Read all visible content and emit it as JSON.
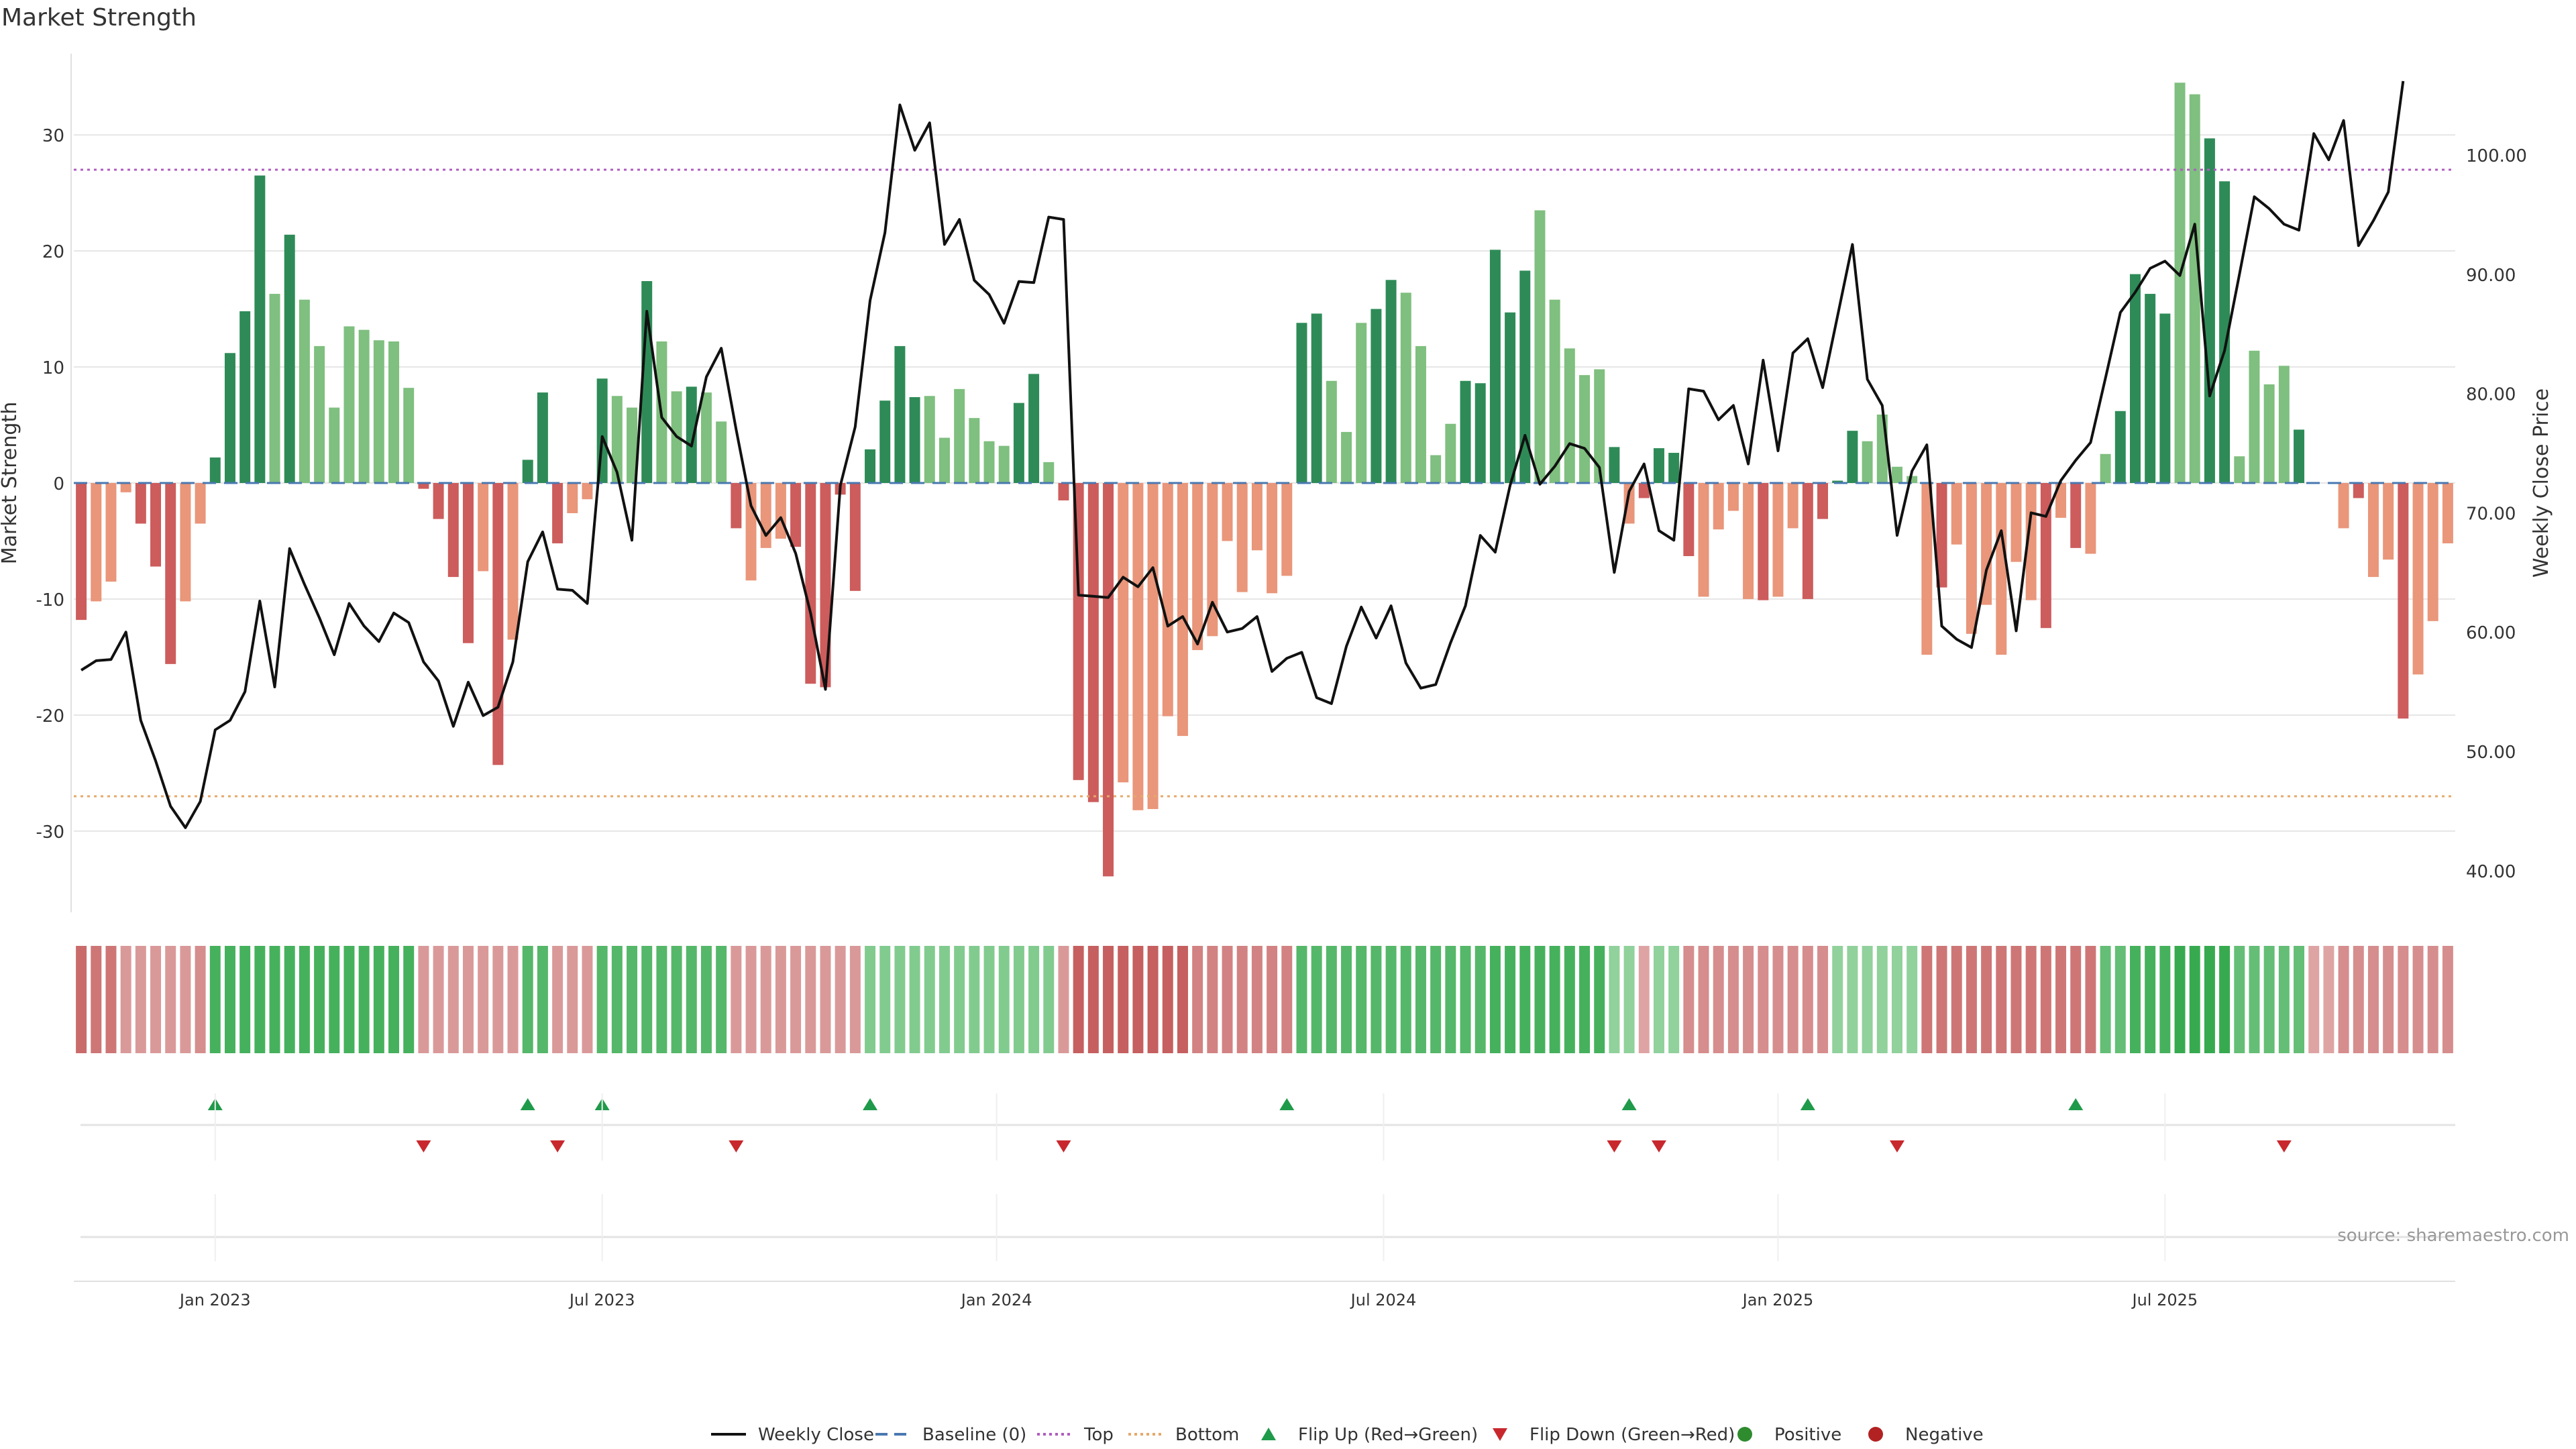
{
  "title": "Market Strength",
  "source": "source: sharemaestro.com",
  "colors": {
    "green_dark": "#2e8b57",
    "green_light": "#7fbf7f",
    "red_dark": "#cd5c5c",
    "red_light": "#e9967a",
    "line": "#111111",
    "top_line": "#b05cc0",
    "bottom_line": "#e6a86a",
    "baseline": "#4a78b0",
    "flip_up": "#1f9a4a",
    "flip_down": "#c8282d",
    "positive": "#2e8b2e",
    "negative": "#b22222",
    "grid": "#e6e6e6"
  },
  "chart_data": {
    "type": "bar",
    "title": "Market Strength",
    "ylabel": "Market Strength",
    "y2label": "Weekly Close Price",
    "ylim": [
      -37,
      37
    ],
    "y2lim": [
      36.5,
      108.5
    ],
    "yticks": [
      -30,
      -20,
      -10,
      0,
      10,
      20,
      30
    ],
    "y2ticks": [
      "40.00",
      "50.00",
      "60.00",
      "70.00",
      "80.00",
      "90.00",
      "100.00"
    ],
    "x_ticks": [
      {
        "label": "Jan 2023",
        "week": 9
      },
      {
        "label": "Jul 2023",
        "week": 35
      },
      {
        "label": "Jan 2024",
        "week": 61.5
      },
      {
        "label": "Jul 2024",
        "week": 87.5
      },
      {
        "label": "Jan 2025",
        "week": 114
      },
      {
        "label": "Jul 2025",
        "week": 140
      }
    ],
    "top_level": 27,
    "bottom_level": -27,
    "baseline": 0,
    "strength": [
      -11.8,
      -10.2,
      -8.5,
      -0.8,
      -3.5,
      -7.2,
      -15.6,
      -10.2,
      -3.5,
      2.2,
      11.2,
      14.8,
      26.5,
      16.3,
      21.4,
      15.8,
      11.8,
      6.5,
      13.5,
      13.2,
      12.3,
      12.2,
      8.2,
      -0.5,
      -3.1,
      -8.1,
      -13.8,
      -7.6,
      -24.3,
      -13.5,
      2.0,
      7.8,
      -5.2,
      -2.6,
      -1.4,
      9.0,
      7.5,
      6.5,
      17.4,
      12.2,
      7.9,
      8.3,
      7.8,
      5.3,
      -3.9,
      -8.4,
      -5.6,
      -4.8,
      -5.5,
      -17.3,
      -17.6,
      -1.0,
      -9.3,
      2.9,
      7.1,
      11.8,
      7.4,
      7.5,
      3.9,
      8.1,
      5.6,
      3.6,
      3.2,
      6.9,
      9.4,
      1.8,
      -1.5,
      -25.6,
      -27.5,
      -33.9,
      -25.8,
      -28.2,
      -28.1,
      -20.1,
      -21.8,
      -14.4,
      -13.2,
      -5.0,
      -9.4,
      -5.8,
      -9.5,
      -8.0,
      13.8,
      14.6,
      8.8,
      4.4,
      13.8,
      15.0,
      17.5,
      16.4,
      11.8,
      2.4,
      5.1,
      8.8,
      8.6,
      20.1,
      14.7,
      18.3,
      23.5,
      15.8,
      11.6,
      9.3,
      9.8,
      3.1,
      -3.5,
      -1.3,
      3.0,
      2.6,
      -6.3,
      -9.8,
      -4.0,
      -2.4,
      -10.0,
      -10.1,
      -9.8,
      -3.9,
      -10.0,
      -3.1,
      0.2,
      4.5,
      3.6,
      5.9,
      1.4,
      0.6,
      -14.8,
      -9.0,
      -5.3,
      -13.0,
      -10.5,
      -14.8,
      -6.8,
      -10.1,
      -12.5,
      -3.0,
      -5.6,
      -6.1,
      2.5,
      6.2,
      18.0,
      16.3,
      14.6,
      34.5,
      33.5,
      29.7,
      26.0,
      2.3,
      11.4,
      8.5,
      10.1,
      4.6,
      0,
      0,
      -3.9,
      -1.3,
      -8.1,
      -6.6,
      -20.3,
      -16.5,
      -11.9,
      -5.2
    ],
    "strength_light_indices": [
      1,
      2,
      3,
      7,
      8,
      13,
      15,
      16,
      17,
      18,
      19,
      20,
      21,
      22,
      27,
      29,
      33,
      34,
      36,
      37,
      39,
      40,
      42,
      43,
      45,
      46,
      47,
      57,
      58,
      59,
      60,
      61,
      62,
      65,
      70,
      71,
      72,
      73,
      74,
      75,
      76,
      77,
      78,
      79,
      80,
      81,
      84,
      85,
      86,
      89,
      90,
      91,
      92,
      98,
      99,
      100,
      101,
      102,
      104,
      109,
      110,
      111,
      112,
      114,
      115,
      120,
      121,
      122,
      123,
      124,
      126,
      127,
      128,
      129,
      130,
      131,
      133,
      135,
      136,
      141,
      142,
      145,
      146,
      147,
      148,
      151,
      152,
      154,
      155,
      157,
      158,
      159,
      160,
      161,
      162,
      163,
      164
    ],
    "weekly_close": [
      56.8,
      57.6,
      57.7,
      60.0,
      52.6,
      49.2,
      45.4,
      43.6,
      45.8,
      51.8,
      52.6,
      55.0,
      62.6,
      55.4,
      67.0,
      64.0,
      61.2,
      58.1,
      62.4,
      60.5,
      59.2,
      61.6,
      60.8,
      57.5,
      55.9,
      52.1,
      55.8,
      53.0,
      53.7,
      57.5,
      65.9,
      68.4,
      63.6,
      63.5,
      62.4,
      76.4,
      73.4,
      67.7,
      86.9,
      78.0,
      76.4,
      75.6,
      81.4,
      83.8,
      77.0,
      70.6,
      68.1,
      69.6,
      66.6,
      61.6,
      55.2,
      72.3,
      77.2,
      87.8,
      93.5,
      104.2,
      100.4,
      102.7,
      92.5,
      94.6,
      89.5,
      88.3,
      85.9,
      89.4,
      89.3,
      94.8,
      94.6,
      63.1,
      63.0,
      62.9,
      64.6,
      63.8,
      65.4,
      60.5,
      61.3,
      59.0,
      62.5,
      60.0,
      60.3,
      61.3,
      56.7,
      57.8,
      58.3,
      54.5,
      54.0,
      58.8,
      62.1,
      59.5,
      62.2,
      57.4,
      55.3,
      55.6,
      59.1,
      62.2,
      68.1,
      66.7,
      72.3,
      76.5,
      72.4,
      73.9,
      75.8,
      75.4,
      73.8,
      65.0,
      71.8,
      74.1,
      68.5,
      67.7,
      80.4,
      80.2,
      77.8,
      79.0,
      74.1,
      82.8,
      75.2,
      83.4,
      84.6,
      80.5,
      86.5,
      92.5,
      81.2,
      79.0,
      68.1,
      73.5,
      75.7,
      60.5,
      59.4,
      58.7,
      65.2,
      68.5,
      60.1,
      70.0,
      69.7,
      72.7,
      74.4,
      75.9,
      81.3,
      86.8,
      88.5,
      90.5,
      91.1,
      89.9,
      94.2,
      79.8,
      83.6,
      90.0,
      96.5,
      95.5,
      94.2,
      93.7,
      101.8,
      99.6,
      102.9,
      92.4,
      94.5,
      96.9,
      106.2
    ],
    "heat_strip": [
      -0.9,
      -0.8,
      -0.8,
      -0.5,
      -0.5,
      -0.5,
      -0.5,
      -0.5,
      -0.6,
      0.9,
      0.9,
      0.9,
      0.9,
      0.9,
      0.9,
      0.9,
      0.9,
      0.9,
      0.9,
      0.9,
      0.9,
      0.9,
      0.9,
      -0.5,
      -0.5,
      -0.5,
      -0.5,
      -0.5,
      -0.5,
      -0.5,
      0.8,
      0.8,
      -0.5,
      -0.5,
      -0.5,
      0.8,
      0.8,
      0.8,
      0.8,
      0.8,
      0.8,
      0.8,
      0.8,
      0.8,
      -0.5,
      -0.5,
      -0.5,
      -0.5,
      -0.5,
      -0.5,
      -0.5,
      -0.5,
      -0.5,
      0.5,
      0.5,
      0.5,
      0.5,
      0.5,
      0.5,
      0.5,
      0.5,
      0.5,
      0.5,
      0.5,
      0.5,
      0.5,
      -0.5,
      -1.0,
      -1.0,
      -1.0,
      -1.0,
      -1.0,
      -1.0,
      -1.0,
      -1.0,
      -0.7,
      -0.7,
      -0.7,
      -0.7,
      -0.7,
      -0.7,
      -0.7,
      0.8,
      0.8,
      0.8,
      0.8,
      0.8,
      0.8,
      0.8,
      0.8,
      0.8,
      0.8,
      0.8,
      0.8,
      0.8,
      0.9,
      0.9,
      0.9,
      0.9,
      0.9,
      0.9,
      0.9,
      0.9,
      0.4,
      0.4,
      -0.4,
      0.4,
      0.4,
      -0.6,
      -0.6,
      -0.6,
      -0.6,
      -0.6,
      -0.6,
      -0.6,
      -0.6,
      -0.6,
      -0.6,
      0.4,
      0.4,
      0.4,
      0.4,
      0.4,
      0.4,
      -0.8,
      -0.8,
      -0.8,
      -0.8,
      -0.8,
      -0.8,
      -0.8,
      -0.8,
      -0.8,
      -0.8,
      -0.8,
      -0.8,
      0.7,
      0.7,
      0.9,
      0.9,
      0.9,
      1.0,
      1.0,
      1.0,
      1.0,
      0.7,
      0.7,
      0.7,
      0.7,
      0.7,
      -0.4,
      -0.4,
      -0.6,
      -0.6,
      -0.6,
      -0.6,
      -0.6,
      -0.6,
      -0.6,
      -0.6
    ],
    "flip_up_weeks": [
      9,
      30,
      35,
      53,
      81,
      104,
      116,
      134
    ],
    "flip_down_weeks": [
      23,
      32,
      44,
      66,
      103,
      106,
      122,
      148
    ],
    "legend": [
      "Weekly Close",
      "Baseline (0)",
      "Top",
      "Bottom",
      "Flip Up (Red→Green)",
      "Flip Down (Green→Red)",
      "Positive",
      "Negative"
    ]
  }
}
